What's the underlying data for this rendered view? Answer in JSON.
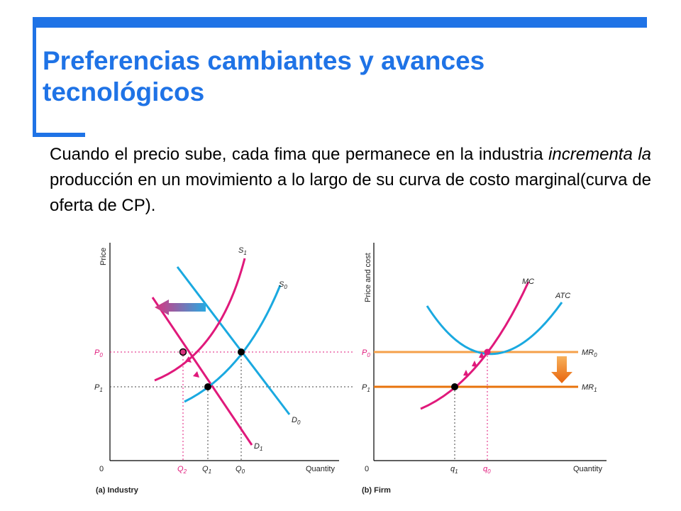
{
  "slide": {
    "title_line1": "Preferencias cambiantes y avances",
    "title_line2": "tecnológicos",
    "body_part1": "Cuando el precio sube, cada fima que permanece en la industria ",
    "body_italic": "incrementa la",
    "body_part2": " producción en un movimiento a lo largo de su curva de costo marginal(curva de oferta de CP)."
  },
  "industry_panel": {
    "ylabel": "Price",
    "xlabel": "Quantity",
    "origin": "0",
    "caption": "(a) Industry",
    "supply_old": {
      "base": "S",
      "sub": "0"
    },
    "supply_new": {
      "base": "S",
      "sub": "1"
    },
    "demand_old": {
      "base": "D",
      "sub": "0"
    },
    "demand_new": {
      "base": "D",
      "sub": "1"
    },
    "price_high": {
      "base": "P",
      "sub": "0"
    },
    "price_low": {
      "base": "P",
      "sub": "1"
    },
    "q_a": {
      "base": "Q",
      "sub": "2"
    },
    "q_b": {
      "base": "Q",
      "sub": "1"
    },
    "q_c": {
      "base": "Q",
      "sub": "0"
    }
  },
  "firm_panel": {
    "ylabel": "Price and cost",
    "xlabel": "Quantity",
    "origin": "0",
    "caption": "(b) Firm",
    "mc": "MC",
    "atc": "ATC",
    "mr_old": {
      "base": "MR",
      "sub": "0"
    },
    "mr_new": {
      "base": "MR",
      "sub": "1"
    },
    "price_high": {
      "base": "P",
      "sub": "0"
    },
    "price_low": {
      "base": "P",
      "sub": "1"
    },
    "q_a": {
      "base": "q",
      "sub": "1"
    },
    "q_b": {
      "base": "q",
      "sub": "0"
    }
  },
  "colors": {
    "accent": "#1f73e6",
    "supply": "#e0197b",
    "demand": "#1aa9e0",
    "mr_old": "#f5a04a",
    "mr_new": "#e8730c"
  }
}
